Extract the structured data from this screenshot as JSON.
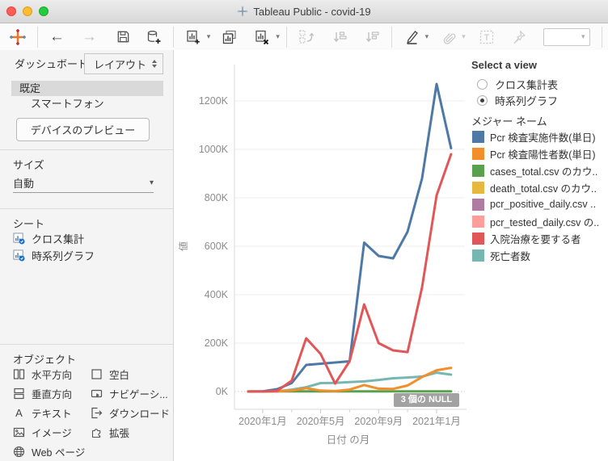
{
  "window": {
    "title": "Tableau Public - covid-19"
  },
  "icons": {
    "undo_arrow": "←",
    "redo_arrow": "→",
    "caret_down": "▾",
    "text_object_glyph": "A",
    "mark_label_glyph": "T",
    "names": [
      "tableau-logo",
      "undo-arrow",
      "redo-arrow",
      "save",
      "new-data-source",
      "new-worksheet",
      "duplicate-sheet",
      "clear-sheet",
      "swap-rows-columns",
      "sort-ascending",
      "sort-descending",
      "highlight-pen",
      "format-attach",
      "show-mark-labels",
      "fit-pin",
      "fit-selector",
      "close",
      "minimize",
      "zoom"
    ]
  },
  "sidebar": {
    "tabs": [
      {
        "label": "ダッシュボード",
        "active": true
      },
      {
        "label": "レイアウト",
        "active": false
      }
    ],
    "dashboard_list": [
      {
        "label": "既定",
        "selected": true
      },
      {
        "label": "スマートフォン",
        "selected": false
      }
    ],
    "device_preview": "デバイスのプレビュー",
    "size": {
      "title": "サイズ",
      "value": "自動"
    },
    "sheets": {
      "title": "シート",
      "items": [
        {
          "label": "クロス集計"
        },
        {
          "label": "時系列グラフ"
        }
      ]
    },
    "objects": {
      "title": "オブジェクト",
      "items": [
        {
          "label": "水平方向"
        },
        {
          "label": "空白"
        },
        {
          "label": "垂直方向"
        },
        {
          "label": "ナビゲーシ..."
        },
        {
          "label": "テキスト"
        },
        {
          "label": "ダウンロード"
        },
        {
          "label": "イメージ"
        },
        {
          "label": "拡張"
        },
        {
          "label": "Web ページ"
        }
      ]
    }
  },
  "view_selector": {
    "title": "Select a view",
    "options": [
      {
        "label": "クロス集計表",
        "selected": false
      },
      {
        "label": "時系列グラフ",
        "selected": true
      }
    ]
  },
  "legend": {
    "title": "メジャー ネーム",
    "items": [
      {
        "label": "Pcr 検査実施件数(単日)",
        "color": "#4e79a7"
      },
      {
        "label": "Pcr 検査陽性者数(単日)",
        "color": "#f28e2b"
      },
      {
        "label": "cases_total.csv のカウ..",
        "color": "#59a14f"
      },
      {
        "label": "death_total.csv のカウ..",
        "color": "#e6b83d"
      },
      {
        "label": "pcr_positive_daily.csv ..",
        "color": "#b07aa1"
      },
      {
        "label": "pcr_tested_daily.csv の..",
        "color": "#ff9d9a"
      },
      {
        "label": "入院治療を要する者",
        "color": "#e15759"
      },
      {
        "label": "死亡者数",
        "color": "#76b7b2"
      }
    ]
  },
  "chart_data": {
    "type": "line",
    "title": "",
    "xlabel": "日付 の月",
    "ylabel": "値",
    "unit": "K",
    "ylim": [
      0,
      1310
    ],
    "grid": true,
    "legend_position": "right",
    "null_indicator": "3 個の NULL",
    "x_months": [
      "2019年12月",
      "2020年1月",
      "2020年2月",
      "2020年3月",
      "2020年4月",
      "2020年5月",
      "2020年6月",
      "2020年7月",
      "2020年8月",
      "2020年9月",
      "2020年10月",
      "2020年11月",
      "2020年12月",
      "2021年1月",
      "2021年2月"
    ],
    "x_tick_labels": [
      {
        "index": 1,
        "label": "2020年1月"
      },
      {
        "index": 5,
        "label": "2020年5月"
      },
      {
        "index": 9,
        "label": "2020年9月"
      },
      {
        "index": 13,
        "label": "2021年1月"
      }
    ],
    "minor_tick_indices": [
      3,
      7,
      11
    ],
    "y_ticks": [
      {
        "value": 0,
        "label": "0K"
      },
      {
        "value": 200,
        "label": "200K"
      },
      {
        "value": 400,
        "label": "400K"
      },
      {
        "value": 600,
        "label": "600K"
      },
      {
        "value": 800,
        "label": "800K"
      },
      {
        "value": 1000,
        "label": "1000K"
      },
      {
        "value": 1200,
        "label": "1200K"
      }
    ],
    "series": [
      {
        "name": "Pcr 検査実施件数(単日)",
        "color": "#4e79a7",
        "z": 4,
        "values": [
          0,
          1,
          10,
          35,
          110,
          115,
          120,
          125,
          615,
          560,
          550,
          660,
          880,
          1270,
          1005
        ]
      },
      {
        "name": "Pcr 検査陽性者数(単日)",
        "color": "#f28e2b",
        "z": 3,
        "values": [
          0,
          0,
          1,
          4,
          14,
          4,
          2,
          8,
          27,
          12,
          11,
          25,
          60,
          88,
          98
        ]
      },
      {
        "name": "cases_total.csv のカウ..",
        "color": "#59a14f",
        "z": 1,
        "values": [
          1,
          1,
          1,
          1,
          1,
          1,
          1,
          1,
          1,
          1,
          1,
          1,
          1,
          1,
          1
        ]
      },
      {
        "name": "death_total.csv のカウ..",
        "color": "#e6b83d",
        "z": 0,
        "values": null
      },
      {
        "name": "pcr_positive_daily.csv ..",
        "color": "#b07aa1",
        "z": 0,
        "values": null
      },
      {
        "name": "pcr_tested_daily.csv の..",
        "color": "#ff9d9a",
        "z": 0,
        "values": null
      },
      {
        "name": "入院治療を要する者",
        "color": "#e15759",
        "z": 5,
        "values": [
          0,
          0,
          3,
          45,
          220,
          155,
          33,
          125,
          360,
          200,
          170,
          163,
          430,
          810,
          980
        ]
      },
      {
        "name": "死亡者数",
        "color": "#76b7b2",
        "z": 2,
        "values": [
          0,
          0,
          1,
          8,
          18,
          35,
          36,
          39,
          42,
          48,
          55,
          58,
          62,
          78,
          70
        ]
      }
    ]
  }
}
